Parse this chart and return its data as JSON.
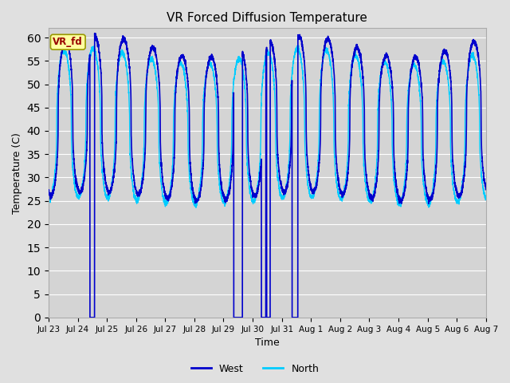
{
  "title": "VR Forced Diffusion Temperature",
  "xlabel": "Time",
  "ylabel": "Temperature (C)",
  "ylim": [
    0,
    62
  ],
  "yticks": [
    0,
    5,
    10,
    15,
    20,
    25,
    30,
    35,
    40,
    45,
    50,
    55,
    60
  ],
  "fig_bg_color": "#e0e0e0",
  "plot_bg_color": "#d4d4d4",
  "grid_color": "#ffffff",
  "west_color": "#0000cc",
  "north_color": "#00ccff",
  "annotation_label": "VR_fd",
  "annotation_bg": "#ffffa0",
  "annotation_border": "#999900",
  "legend_west": "West",
  "legend_north": "North",
  "tick_labels": [
    "Jul 23",
    "Jul 24",
    "Jul 25",
    "Jul 26",
    "Jul 27",
    "Jul 28",
    "Jul 29",
    "Jul 30",
    "Jul 31",
    "Aug 1",
    "Aug 2",
    "Aug 3",
    "Aug 4",
    "Aug 5",
    "Aug 6",
    "Aug 7"
  ],
  "n_days": 15
}
